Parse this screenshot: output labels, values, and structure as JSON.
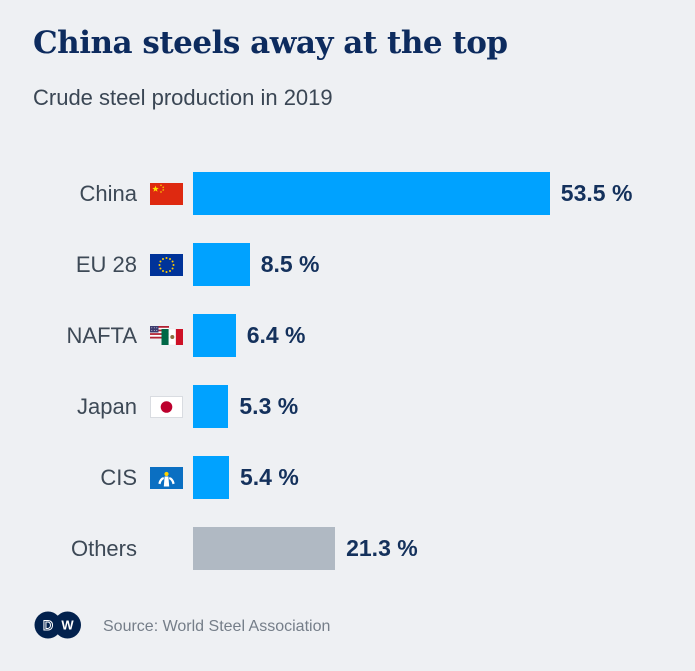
{
  "chart_data": {
    "type": "bar",
    "orientation": "horizontal",
    "title": "China steels away at the top",
    "subtitle": "Crude steel production in 2019",
    "unit": "%",
    "grid": false,
    "legend": false,
    "xlim": [
      0,
      53.5
    ],
    "categories": [
      "China",
      "EU 28",
      "NAFTA",
      "Japan",
      "CIS",
      "Others"
    ],
    "values": [
      53.5,
      8.5,
      6.4,
      5.3,
      5.4,
      21.3
    ],
    "value_labels": [
      "53.5 %",
      "8.5 %",
      "6.4 %",
      "5.3 %",
      "5.4 %",
      "21.3 %"
    ],
    "flags": [
      "china-flag",
      "eu-28-flag",
      "nafta-flag",
      "japan-flag",
      "cis-flag",
      null
    ],
    "bar_colors": [
      "#00a2ff",
      "#00a2ff",
      "#00a2ff",
      "#00a2ff",
      "#00a2ff",
      "#b0b9c3"
    ]
  },
  "footer": {
    "logo": "DW",
    "source": "Source: World Steel Association"
  },
  "colors": {
    "background": "#eef0f3",
    "accent_blue": "#00a2ff",
    "muted_gray_bar": "#b0b9c3",
    "title_navy": "#0d2b5e",
    "value_navy": "#14315c",
    "label_gray": "#3d4956",
    "source_gray": "#757e89",
    "logo_navy": "#02214d"
  }
}
